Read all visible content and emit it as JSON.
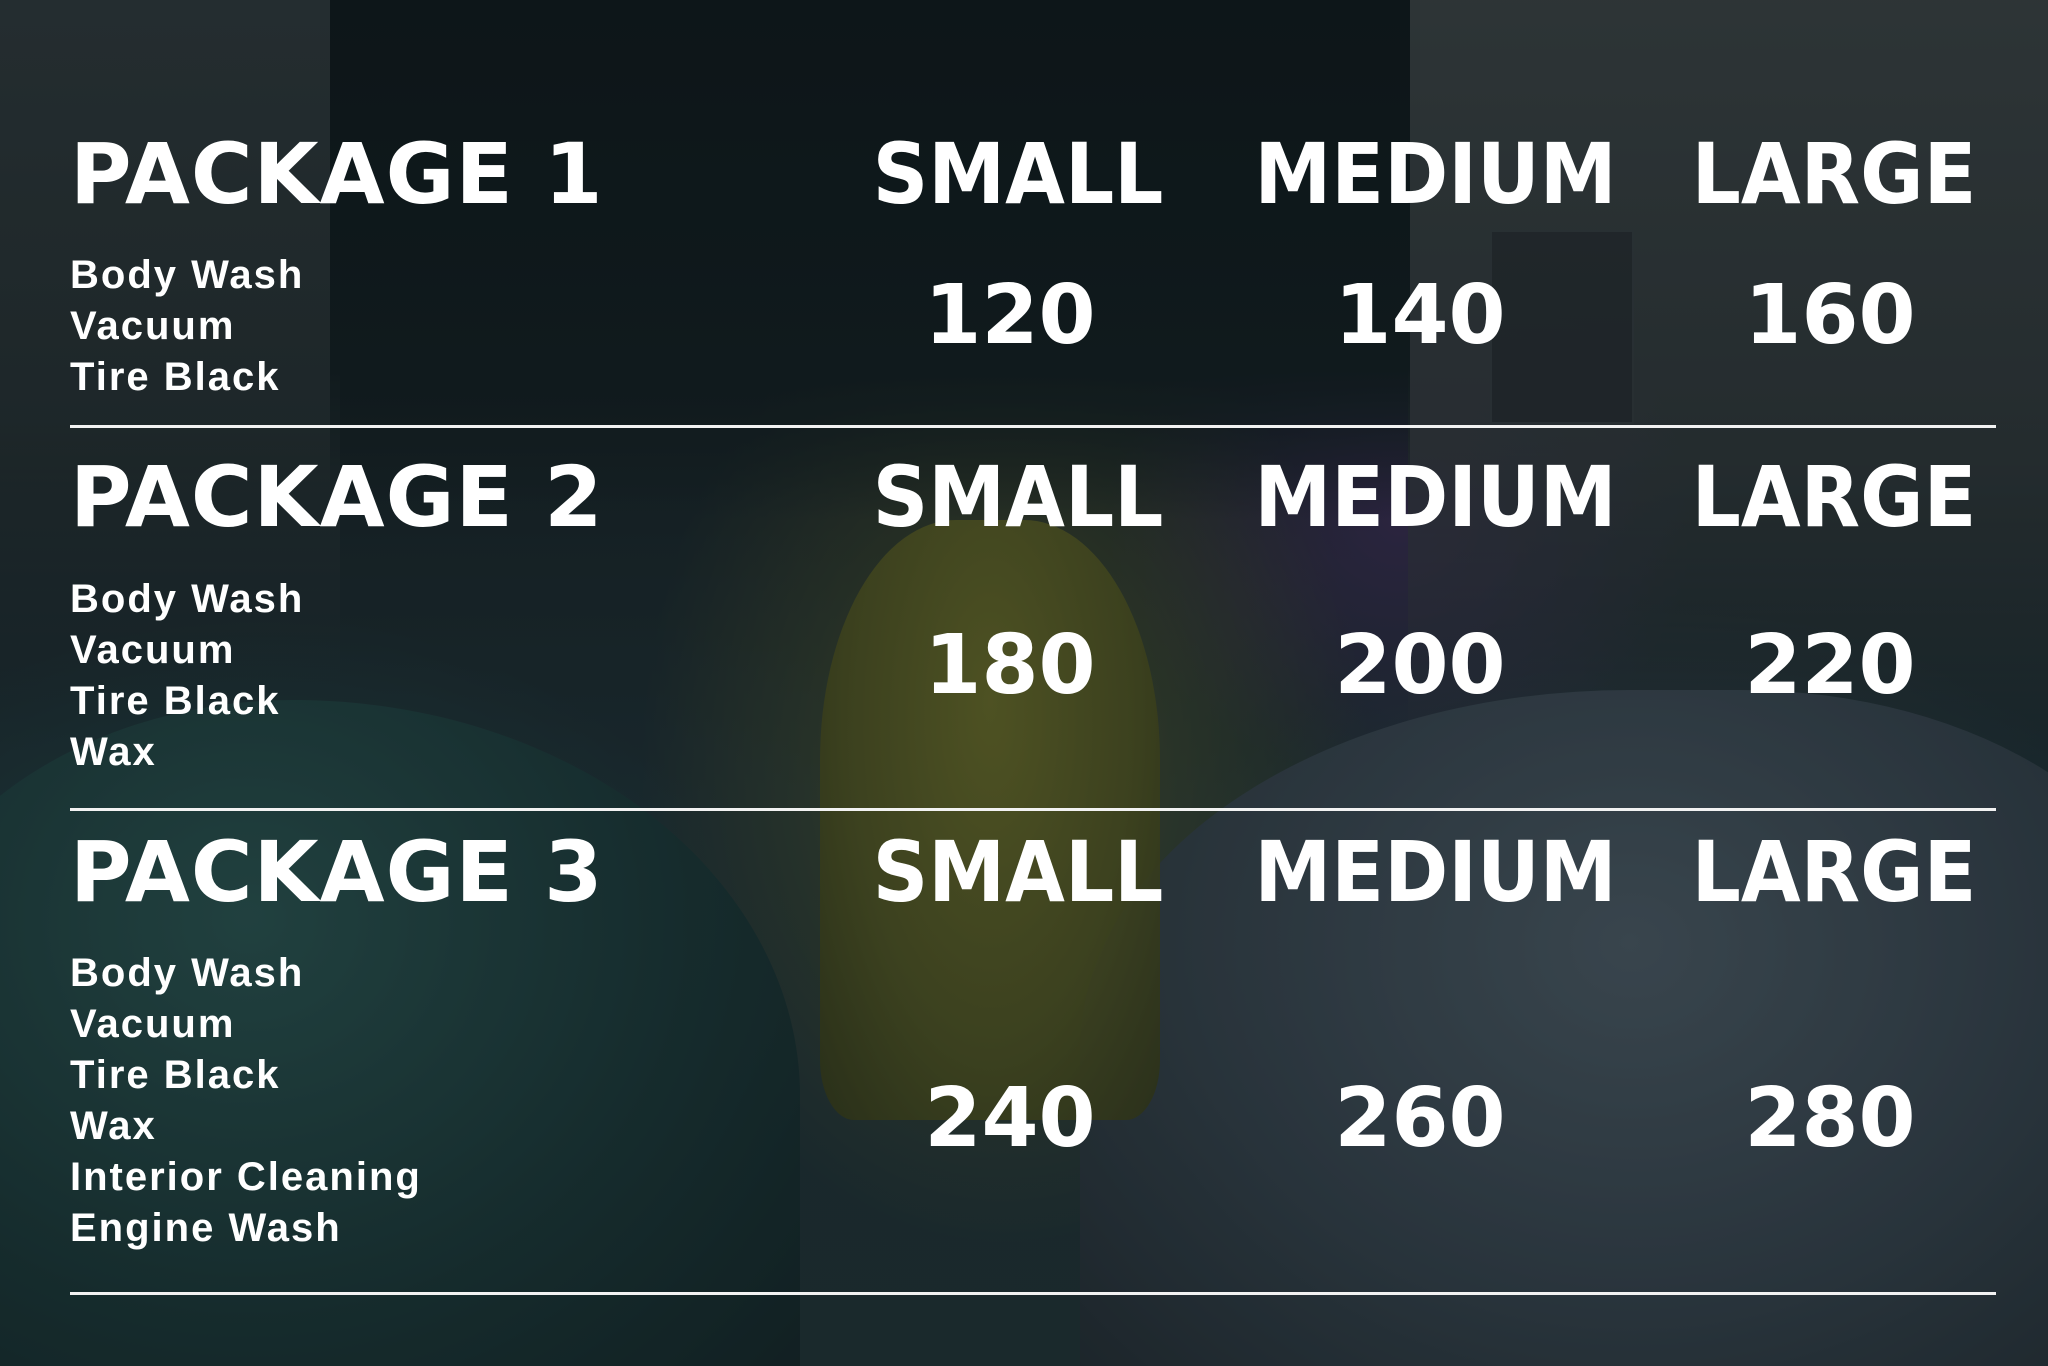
{
  "packages": [
    {
      "title": "PACKAGE 1",
      "sizes": [
        "SMALL",
        "MEDIUM",
        "LARGE"
      ],
      "features": [
        "Body Wash",
        "Vacuum",
        "Tire Black"
      ],
      "prices": [
        "120",
        "140",
        "160"
      ]
    },
    {
      "title": "PACKAGE 2",
      "sizes": [
        "SMALL",
        "MEDIUM",
        "LARGE"
      ],
      "features": [
        "Body Wash",
        "Vacuum",
        "Tire Black",
        "Wax"
      ],
      "prices": [
        "180",
        "200",
        "220"
      ]
    },
    {
      "title": "PACKAGE 3",
      "sizes": [
        "SMALL",
        "MEDIUM",
        "LARGE"
      ],
      "features": [
        "Body Wash",
        "Vacuum",
        "Tire Black",
        "Wax",
        "Interior Cleaning",
        "Engine Wash"
      ],
      "prices": [
        "240",
        "260",
        "280"
      ]
    }
  ],
  "colors": {
    "text": "#ffffff",
    "divider": "#f2f2f2"
  }
}
